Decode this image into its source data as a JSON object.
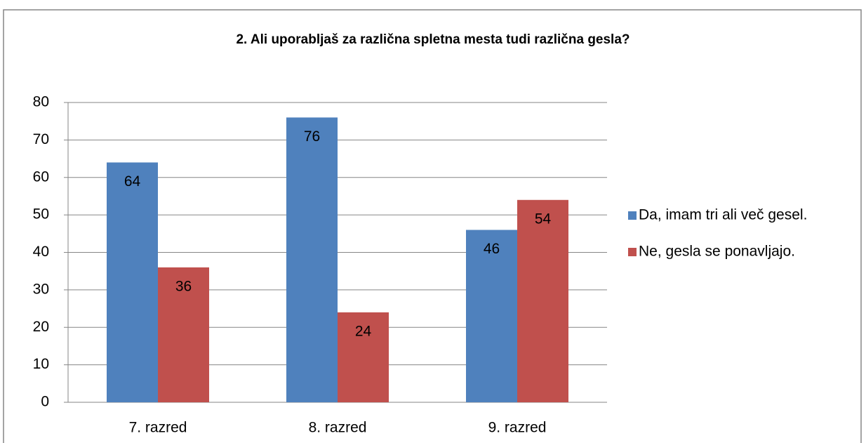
{
  "chart_data": {
    "type": "bar",
    "title": "2. Ali uporabljaš za različna spletna mesta tudi različna gesla?",
    "categories": [
      "7. razred",
      "8. razred",
      "9. razred"
    ],
    "series": [
      {
        "name": "Da, imam tri ali več gesel.",
        "color": "#4f81bd",
        "values": [
          64,
          76,
          46
        ]
      },
      {
        "name": "Ne, gesla se ponavljajo.",
        "color": "#c0504d",
        "values": [
          36,
          24,
          54
        ]
      }
    ],
    "ylim": [
      0,
      80
    ],
    "yticks": [
      0,
      10,
      20,
      30,
      40,
      50,
      60,
      70,
      80
    ],
    "grid": true,
    "legend": "right"
  }
}
